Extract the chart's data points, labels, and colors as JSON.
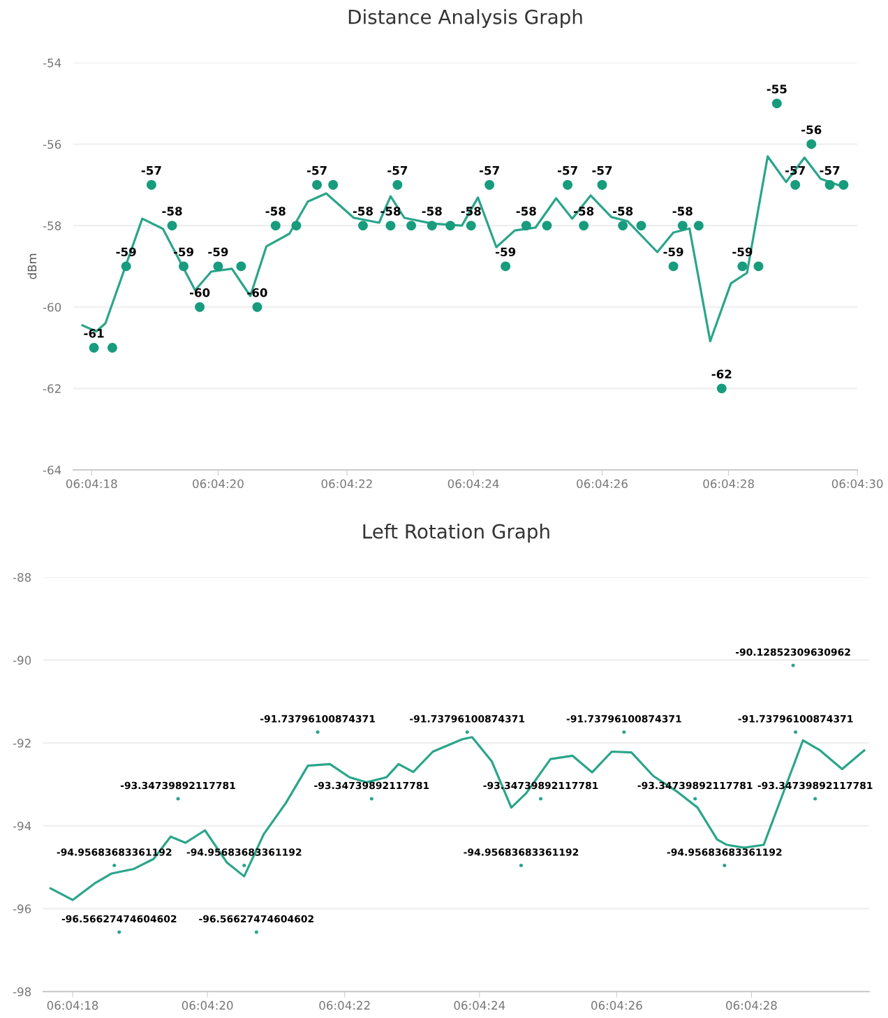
{
  "chart_data": [
    {
      "type": "scatter",
      "title": "Distance Analysis Graph",
      "ylabel": "dBm",
      "grid": "y",
      "ylim": [
        -64,
        -54
      ],
      "yticks": [
        -64,
        -62,
        -60,
        -58,
        -56,
        -54
      ],
      "xlim": [
        6.07159,
        6.075
      ],
      "xticks": [
        {
          "value": 6.07167,
          "label": "06:04:18"
        },
        {
          "value": 6.07222,
          "label": "06:04:20"
        },
        {
          "value": 6.07278,
          "label": "06:04:22"
        },
        {
          "value": 6.07333,
          "label": "06:04:24"
        },
        {
          "value": 6.07389,
          "label": "06:04:26"
        },
        {
          "value": 6.07444,
          "label": "06:04:28"
        },
        {
          "value": 6.075,
          "label": "06:04:30"
        }
      ],
      "series": [
        {
          "color": "#179c7d",
          "marker": "circle",
          "x": [
            6.07168,
            6.07176,
            6.07182,
            6.07193,
            6.07202,
            6.07207,
            6.07214,
            6.07222,
            6.07232,
            6.07239,
            6.07247,
            6.07256,
            6.07265,
            6.07272,
            6.07285,
            6.07297,
            6.073,
            6.07306,
            6.07315,
            6.07323,
            6.07332,
            6.0734,
            6.07347,
            6.07356,
            6.07365,
            6.07374,
            6.07381,
            6.07389,
            6.07398,
            6.07406,
            6.0742,
            6.07424,
            6.07431,
            6.07441,
            6.0745,
            6.07457,
            6.07465,
            6.07473,
            6.0748,
            6.07488,
            6.07494
          ],
          "values": [
            -61,
            -61,
            -59,
            -57,
            -58,
            -59,
            -60,
            -59,
            -59,
            -60,
            -58,
            -58,
            -57,
            -57,
            -58,
            -58,
            -57,
            -58,
            -58,
            -58,
            -58,
            -57,
            -59,
            -58,
            -58,
            -57,
            -58,
            -57,
            -58,
            -58,
            -59,
            -58,
            -58,
            -62,
            -59,
            -59,
            -55,
            -57,
            -56,
            -57,
            -57
          ],
          "value_labels": [
            "-61",
            null,
            "-59",
            "-57",
            "-58",
            "-59",
            "-60",
            "-59",
            null,
            "-60",
            "-58",
            null,
            "-57",
            null,
            "-58",
            "-58",
            "-57",
            null,
            "-58",
            null,
            "-58",
            "-57",
            "-59",
            "-58",
            null,
            "-57",
            "-58",
            "-57",
            "-58",
            null,
            "-59",
            "-58",
            null,
            "-62",
            "-59",
            null,
            "-55",
            "-57",
            "-56",
            "-57",
            null
          ]
        },
        {
          "type": "line",
          "color": "#2aa58a",
          "marker": "none",
          "line_style": "solid",
          "x": [
            6.07163,
            6.07169,
            6.07173,
            6.07189,
            6.07198,
            6.07212,
            6.07219,
            6.07228,
            6.07236,
            6.07243,
            6.07253,
            6.07261,
            6.07269,
            6.07281,
            6.07292,
            6.07297,
            6.07303,
            6.07315,
            6.07328,
            6.07335,
            6.07343,
            6.07351,
            6.0736,
            6.07369,
            6.07376,
            6.07384,
            6.07393,
            6.074,
            6.07413,
            6.0742,
            6.07427,
            6.07436,
            6.07445,
            6.07452,
            6.07461,
            6.07469,
            6.07477,
            6.07484,
            6.07494
          ],
          "values": [
            -60.45,
            -60.6,
            -60.4,
            -57.83,
            -58.08,
            -59.59,
            -59.13,
            -59.06,
            -59.73,
            -58.51,
            -58.2,
            -57.41,
            -57.21,
            -57.81,
            -57.93,
            -57.28,
            -57.81,
            -57.95,
            -58.0,
            -57.31,
            -58.53,
            -58.12,
            -58.05,
            -57.33,
            -57.83,
            -57.26,
            -57.79,
            -57.89,
            -58.65,
            -58.17,
            -58.07,
            -60.84,
            -59.42,
            -59.16,
            -56.3,
            -56.93,
            -56.33,
            -56.85,
            -57.05
          ]
        }
      ]
    },
    {
      "type": "line",
      "title": "Left Rotation Graph",
      "grid": "y",
      "ylim": [
        -98,
        -88
      ],
      "yticks": [
        -98,
        -96,
        -94,
        -92,
        -90,
        -88
      ],
      "xlim": [
        6.07155,
        6.07492
      ],
      "xticks": [
        {
          "value": 6.07167,
          "label": "06:04:18"
        },
        {
          "value": 6.07222,
          "label": "06:04:20"
        },
        {
          "value": 6.07278,
          "label": "06:04:22"
        },
        {
          "value": 6.07333,
          "label": "06:04:24"
        },
        {
          "value": 6.07389,
          "label": "06:04:26"
        },
        {
          "value": 6.07444,
          "label": "06:04:28"
        }
      ],
      "series": [
        {
          "color": "#2aa58a",
          "marker": "none",
          "line_style": "solid",
          "x": [
            6.07158,
            6.07167,
            6.07176,
            6.07183,
            6.07192,
            6.072,
            6.07207,
            6.07213,
            6.07221,
            6.0723,
            6.07237,
            6.07245,
            6.07254,
            6.07263,
            6.07272,
            6.0728,
            6.07287,
            6.07295,
            6.073,
            6.07306,
            6.07314,
            6.07326,
            6.0733,
            6.07338,
            6.07346,
            6.07352,
            6.07362,
            6.07371,
            6.07379,
            6.07387,
            6.07395,
            6.07404,
            6.07414,
            6.07422,
            6.0743,
            6.07434,
            6.07441,
            6.07449,
            6.07465,
            6.07472,
            6.07481,
            6.0749
          ],
          "values": [
            -95.51,
            -95.79,
            -95.39,
            -95.15,
            -95.04,
            -94.8,
            -94.26,
            -94.41,
            -94.11,
            -94.89,
            -95.22,
            -94.2,
            -93.45,
            -92.55,
            -92.51,
            -92.83,
            -92.95,
            -92.83,
            -92.51,
            -92.7,
            -92.21,
            -91.91,
            -91.86,
            -92.44,
            -93.56,
            -93.22,
            -92.39,
            -92.31,
            -92.71,
            -92.21,
            -92.23,
            -92.8,
            -93.19,
            -93.56,
            -94.33,
            -94.46,
            -94.53,
            -94.46,
            -91.94,
            -92.18,
            -92.63,
            -92.18
          ]
        },
        {
          "type": "scatter",
          "marker": "circle",
          "color": "#2aa58a",
          "x": [
            6.07184,
            6.07186,
            6.0721,
            6.07237,
            6.07242,
            6.07267,
            6.07289,
            6.07328,
            6.0735,
            6.07358,
            6.07392,
            6.07421,
            6.07433,
            6.07461,
            6.07462,
            6.0747
          ],
          "values": [
            -94.95683683361192,
            -96.56627474604602,
            -93.34739892117781,
            -94.95683683361192,
            -96.56627474604602,
            -91.73796100874371,
            -93.34739892117781,
            -91.73796100874371,
            -94.95683683361192,
            -93.34739892117781,
            -91.73796100874371,
            -93.34739892117781,
            -94.95683683361192,
            -90.12852309630962,
            -91.73796100874371,
            -93.34739892117781
          ],
          "value_labels": [
            "-94.95683683361192",
            "-96.56627474604602",
            "-93.34739892117781",
            "-94.95683683361192",
            "-96.56627474604602",
            "-91.73796100874371",
            "-93.34739892117781",
            "-91.73796100874371",
            "-94.95683683361192",
            "-93.34739892117781",
            "-91.73796100874371",
            "-93.34739892117781",
            "-94.95683683361192",
            "-90.12852309630962",
            "-91.73796100874371",
            "-93.34739892117781"
          ]
        }
      ]
    }
  ]
}
